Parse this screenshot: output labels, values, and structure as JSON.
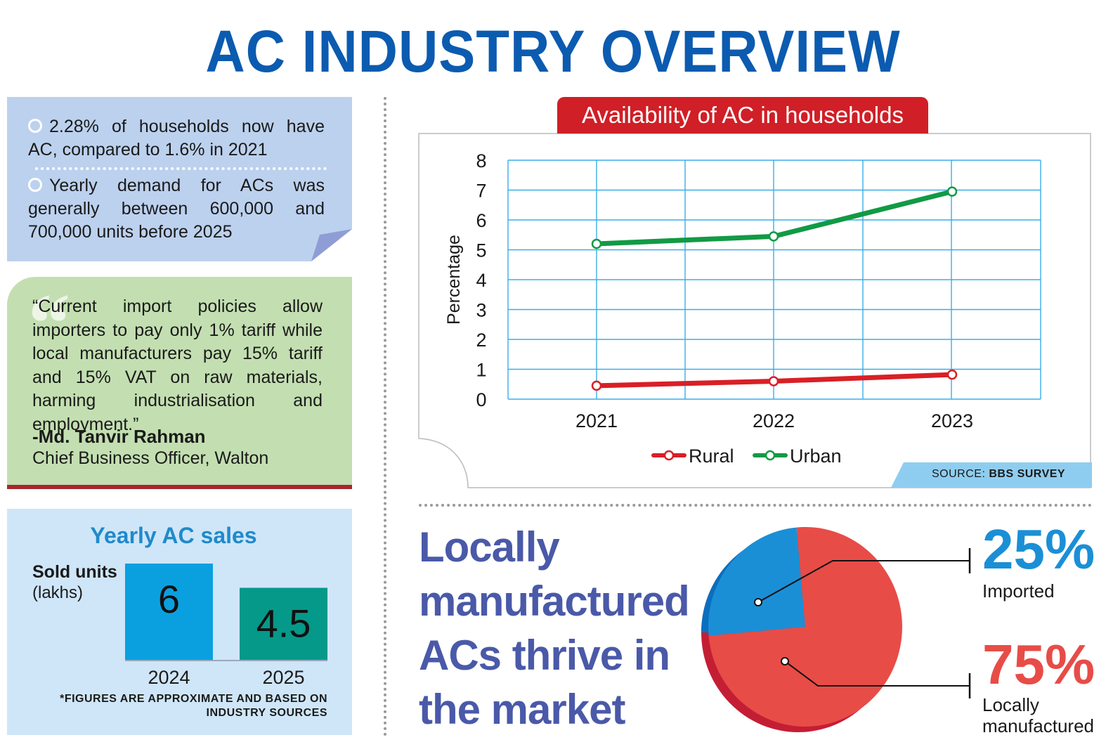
{
  "title": "AC INDUSTRY OVERVIEW",
  "facts": [
    "2.28% of households now have AC, compared to 1.6% in 2021",
    "Yearly demand for ACs was generally between 600,000 and 700,000 units before 2025"
  ],
  "quote": {
    "text": "“Current import policies allow importers to pay only 1% tariff while local manufacturers pay 15% tariff and 15% VAT on raw materials, harming industrialisation and employment.”",
    "author": "-Md. Tanvir Rahman",
    "role": "Chief Business Officer, Walton"
  },
  "sales": {
    "title": "Yearly AC sales",
    "ylabel": "Sold units",
    "yunit": "(lakhs)",
    "note": "*FIGURES ARE APPROXIMATE AND BASED ON INDUSTRY SOURCES"
  },
  "line_chart": {
    "banner": "Availability of AC in households",
    "source_prefix": "SOURCE: ",
    "source_name": "BBS SURVEY"
  },
  "headline": "Locally manufactured ACs thrive in the market",
  "colors": {
    "title": "#0b5bb0",
    "rural": "#d91f26",
    "urban": "#129a45",
    "bar_2024": "#0aa0e0",
    "bar_2025": "#05998a",
    "imported": "#1b8fd6",
    "local": "#e84c47"
  },
  "chart_data": [
    {
      "type": "line",
      "title": "Availability of AC in households",
      "xlabel": "",
      "ylabel": "Percentage",
      "x": [
        "2021",
        "2022",
        "2023"
      ],
      "series": [
        {
          "name": "Rural",
          "values": [
            0.45,
            0.6,
            0.82
          ]
        },
        {
          "name": "Urban",
          "values": [
            5.2,
            5.45,
            6.95
          ]
        }
      ],
      "ylim": [
        0,
        8
      ],
      "yticks": [
        0,
        1,
        2,
        3,
        4,
        5,
        6,
        7,
        8
      ],
      "grid": true,
      "legend": "bottom"
    },
    {
      "type": "bar",
      "title": "Yearly AC sales",
      "ylabel": "Sold units",
      "categories": [
        "2024",
        "2025"
      ],
      "values": [
        6,
        4.5
      ],
      "value_labels": [
        "6",
        "4.5"
      ]
    },
    {
      "type": "pie",
      "slices": [
        {
          "name": "Imported",
          "value": 25,
          "label": "25%"
        },
        {
          "name": "Locally manufactured",
          "value": 75,
          "label": "75%"
        }
      ]
    }
  ]
}
